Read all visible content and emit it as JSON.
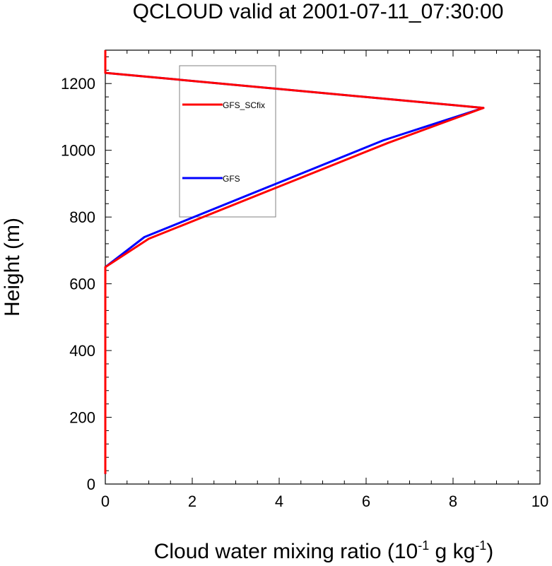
{
  "chart_data": {
    "type": "line",
    "title": "QCLOUD valid at 2001-07-11_07:30:00",
    "xlabel": {
      "prefix": "Cloud water mixing ratio (10",
      "exp1": "-1",
      "middle": " g kg",
      "exp2": "-1",
      "suffix": ")"
    },
    "ylabel": "Height (m)",
    "xlim": [
      0,
      10
    ],
    "ylim": [
      0,
      1300
    ],
    "xticks": [
      0,
      2,
      4,
      6,
      8,
      10
    ],
    "yticks": [
      0,
      200,
      400,
      600,
      800,
      1000,
      1200
    ],
    "xtick_labels": [
      "0",
      "2",
      "4",
      "6",
      "8",
      "10"
    ],
    "ytick_labels": [
      "0",
      "200",
      "400",
      "600",
      "800",
      "1000",
      "1200"
    ],
    "grid": false,
    "series": [
      {
        "name": "GFS",
        "color": "#0000ff",
        "points": [
          [
            0,
            30
          ],
          [
            0,
            650
          ],
          [
            0.9,
            740
          ],
          [
            6.4,
            1030
          ],
          [
            8.7,
            1127
          ],
          [
            0,
            1232
          ],
          [
            0,
            1300
          ]
        ]
      },
      {
        "name": "GFS_SCfix",
        "color": "#ff0000",
        "points": [
          [
            0,
            30
          ],
          [
            0,
            650
          ],
          [
            1.0,
            735
          ],
          [
            6.5,
            1022
          ],
          [
            8.7,
            1127
          ],
          [
            0,
            1232
          ],
          [
            0,
            1300
          ]
        ]
      }
    ],
    "legend": [
      {
        "label": "GFS_SCfix",
        "color": "#ff0000"
      },
      {
        "label": "GFS",
        "color": "#0000ff"
      }
    ]
  }
}
